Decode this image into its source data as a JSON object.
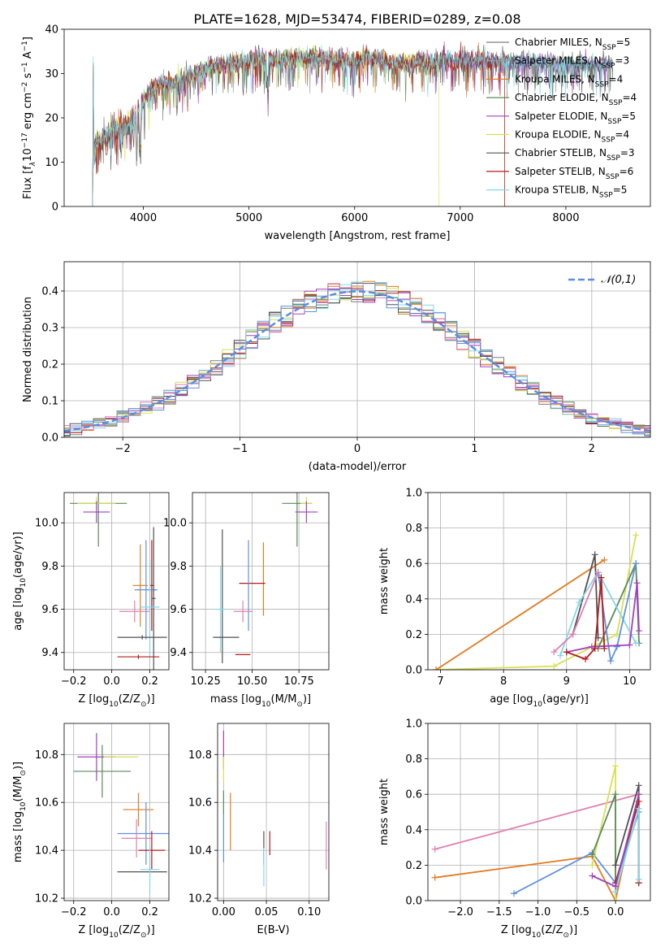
{
  "title": "PLATE=1628, MJD=53474, FIBERID=0289, z=0.08",
  "colors": {
    "Chabrier MILES": "#7f7f7f",
    "Salpeter MILES": "#9fa0a0",
    "Kroupa MILES": "#e07b20",
    "Chabrier ELODIE": "#5a8a5a",
    "Salpeter ELODIE": "#a040c0",
    "Kroupa ELODIE": "#d8e050",
    "Chabrier STELIB": "#505050",
    "Salpeter STELIB": "#b01c1c",
    "Kroupa STELIB": "#80d8e8",
    "pink": "#e080b0",
    "blue": "#6090e0",
    "gauss": "#5b8ee0"
  },
  "chart_data": [
    {
      "type": "line",
      "xlabel": "wavelength [Angstrom, rest frame]",
      "ylabel": "Flux [f$_\\lambda$10$^{-17}$ erg cm$^{-2}$ s$^{-1}$ A$^{-1}$]",
      "ylabel_main": "Flux [f",
      "ylabel_lambda": "λ",
      "ylabel_mid": "10",
      "ylabel_exp": "−17",
      "ylabel_rest": " erg cm",
      "ylabel_cm_exp": "−2",
      "ylabel_s": " s",
      "ylabel_s_exp": "−1",
      "ylabel_A": " A",
      "ylabel_A_exp": "−1",
      "ylabel_end": "]",
      "xlim": [
        3250,
        8800
      ],
      "ylim": [
        0,
        40
      ],
      "xticks": [
        4000,
        5000,
        6000,
        7000,
        8000
      ],
      "yticks": [
        0,
        10,
        20,
        30,
        40
      ],
      "legend": [
        {
          "label": "Chabrier MILES, N",
          "sub": "SSP",
          "tail": "=5",
          "key": "Chabrier MILES"
        },
        {
          "label": "Salpeter MILES, N",
          "sub": "SSP",
          "tail": "=3",
          "key": "Salpeter MILES"
        },
        {
          "label": "Kroupa MILES, N",
          "sub": "SSP",
          "tail": "=4",
          "key": "Kroupa MILES"
        },
        {
          "label": "Chabrier ELODIE, N",
          "sub": "SSP",
          "tail": "=4",
          "key": "Chabrier ELODIE"
        },
        {
          "label": "Salpeter ELODIE, N",
          "sub": "SSP",
          "tail": "=5",
          "key": "Salpeter ELODIE"
        },
        {
          "label": "Kroupa ELODIE, N",
          "sub": "SSP",
          "tail": "=4",
          "key": "Kroupa ELODIE"
        },
        {
          "label": "Chabrier STELIB, N",
          "sub": "SSP",
          "tail": "=3",
          "key": "Chabrier STELIB"
        },
        {
          "label": "Salpeter STELIB, N",
          "sub": "SSP",
          "tail": "=6",
          "key": "Salpeter STELIB"
        },
        {
          "label": "Kroupa STELIB, N",
          "sub": "SSP",
          "tail": "=5",
          "key": "Kroupa STELIB"
        }
      ],
      "legend_position": "right",
      "continuum": [
        [
          3530,
          13
        ],
        [
          3600,
          15
        ],
        [
          3700,
          17
        ],
        [
          3800,
          17.5
        ],
        [
          3900,
          19
        ],
        [
          4000,
          24
        ],
        [
          4100,
          27
        ],
        [
          4200,
          28
        ],
        [
          4300,
          27.5
        ],
        [
          4400,
          29
        ],
        [
          4500,
          30
        ],
        [
          4600,
          31
        ],
        [
          4700,
          32
        ],
        [
          4800,
          32.5
        ],
        [
          4900,
          32.5
        ],
        [
          5000,
          33
        ],
        [
          5100,
          33.5
        ],
        [
          5200,
          33
        ],
        [
          5300,
          33
        ],
        [
          5400,
          33.5
        ],
        [
          5500,
          33.5
        ],
        [
          5600,
          33.5
        ],
        [
          5700,
          33.5
        ],
        [
          5800,
          33
        ],
        [
          5900,
          33
        ],
        [
          6000,
          33
        ],
        [
          6100,
          33.5
        ],
        [
          6200,
          33.5
        ],
        [
          6300,
          32.5
        ],
        [
          6400,
          32.5
        ],
        [
          6500,
          32
        ],
        [
          6600,
          33
        ],
        [
          6700,
          32
        ],
        [
          6800,
          33
        ],
        [
          6900,
          33
        ],
        [
          7000,
          33
        ],
        [
          7200,
          33
        ],
        [
          7400,
          32.5
        ],
        [
          7600,
          32.5
        ],
        [
          7800,
          32.5
        ],
        [
          8000,
          32
        ],
        [
          8200,
          32
        ],
        [
          8450,
          32
        ]
      ]
    },
    {
      "type": "histogram",
      "xlabel": "(data-model)/error",
      "ylabel": "Normed distribution",
      "xlim": [
        -2.5,
        2.5
      ],
      "ylim": [
        0,
        0.48
      ],
      "xticks": [
        -2,
        -1,
        0,
        1,
        2
      ],
      "yticks": [
        0.0,
        0.1,
        0.2,
        0.3,
        0.4
      ],
      "legend": "𝒩(0,1)",
      "legend_position": "top-right",
      "bin_width": 0.1,
      "series_keys": [
        "Chabrier MILES",
        "Kroupa MILES",
        "Chabrier ELODIE",
        "Salpeter ELODIE",
        "Kroupa ELODIE",
        "Chabrier STELIB",
        "Salpeter STELIB",
        "Kroupa STELIB",
        "pink",
        "blue"
      ]
    },
    {
      "type": "scatter",
      "xlabel": "Z [log",
      "xlabel_sub": "10",
      "xlabel_tail": "(Z/Z",
      "xlabel_sun": "⊙",
      "xlabel_end": ")]",
      "ylabel": "age  [log",
      "ylabel_sub": "10",
      "ylabel_tail": "(age/yr)]",
      "xlim": [
        -0.25,
        0.3
      ],
      "ylim": [
        9.32,
        10.14
      ],
      "xticks": [
        -0.2,
        0.0,
        0.2
      ],
      "yticks": [
        9.4,
        9.6,
        9.8,
        10.0
      ],
      "points": [
        {
          "key": "Chabrier ELODIE",
          "x": -0.07,
          "y": 10.09,
          "xerr": 0.15,
          "yerr": 0.2
        },
        {
          "key": "Kroupa ELODIE",
          "x": -0.08,
          "y": 10.09,
          "xerr": 0.1,
          "yerr": 0.03
        },
        {
          "key": "Salpeter ELODIE",
          "x": -0.08,
          "y": 10.05,
          "xerr": 0.07,
          "yerr": 0.05
        },
        {
          "key": "Kroupa MILES",
          "x": 0.15,
          "y": 9.71,
          "xerr": 0.04,
          "yerr": 0.19
        },
        {
          "key": "Salpeter STELIB",
          "x": 0.21,
          "y": 9.71,
          "xerr": 0.01,
          "yerr": 0.21
        },
        {
          "key": "blue",
          "x": 0.18,
          "y": 9.69,
          "xerr": 0.06,
          "yerr": 0.23
        },
        {
          "key": "Chabrier STELIB",
          "x": 0.22,
          "y": 9.65,
          "xerr": 0.01,
          "yerr": 0.33
        },
        {
          "key": "pink",
          "x": 0.12,
          "y": 9.59,
          "xerr": 0.08,
          "yerr": 0.05
        },
        {
          "key": "Kroupa STELIB",
          "x": 0.2,
          "y": 9.61,
          "xerr": 0.05,
          "yerr": 0.22
        },
        {
          "key": "Chabrier STELIB",
          "x": 0.16,
          "y": 9.47,
          "xerr": 0.13,
          "yerr": 0.01
        },
        {
          "key": "Salpeter STELIB",
          "x": 0.14,
          "y": 9.38,
          "xerr": 0.11,
          "yerr": 0.01
        }
      ]
    },
    {
      "type": "scatter",
      "xlabel": "mass [log",
      "xlabel_sub": "10",
      "xlabel_tail": "(M/M",
      "xlabel_sun": "⊙",
      "xlabel_end": ")]",
      "xlim": [
        10.18,
        10.91
      ],
      "ylim": [
        9.32,
        10.14
      ],
      "xticks": [
        10.25,
        10.5,
        10.75
      ],
      "yticks": [
        9.4,
        9.6,
        9.8,
        10.0
      ],
      "points": [
        {
          "key": "Chabrier ELODIE",
          "x": 10.74,
          "y": 10.09,
          "xerr": 0.08,
          "yerr": 0.2
        },
        {
          "key": "Kroupa ELODIE",
          "x": 10.79,
          "y": 10.09,
          "xerr": 0.03,
          "yerr": 0.03
        },
        {
          "key": "Salpeter ELODIE",
          "x": 10.79,
          "y": 10.05,
          "xerr": 0.06,
          "yerr": 0.05
        },
        {
          "key": "Chabrier STELIB",
          "x": 10.34,
          "y": 9.66,
          "xerr": 0.0,
          "yerr": 0.31
        },
        {
          "key": "Kroupa MILES",
          "x": 10.56,
          "y": 9.74,
          "xerr": 0.0,
          "yerr": 0.17
        },
        {
          "key": "Salpeter STELIB",
          "x": 10.5,
          "y": 9.72,
          "xerr": 0.07,
          "yerr": 0.0
        },
        {
          "key": "blue",
          "x": 10.48,
          "y": 9.71,
          "xerr": 0.0,
          "yerr": 0.21
        },
        {
          "key": "pink",
          "x": 10.45,
          "y": 9.59,
          "xerr": 0.05,
          "yerr": 0.05
        },
        {
          "key": "Kroupa STELIB",
          "x": 10.33,
          "y": 9.6,
          "xerr": 0.03,
          "yerr": 0.2
        },
        {
          "key": "Chabrier STELIB",
          "x": 10.36,
          "y": 9.47,
          "xerr": 0.07,
          "yerr": 0.0
        },
        {
          "key": "Salpeter STELIB",
          "x": 10.45,
          "y": 9.39,
          "xerr": 0.04,
          "yerr": 0.0
        }
      ]
    },
    {
      "type": "line",
      "xlabel": "age  [log",
      "xlabel_sub": "10",
      "xlabel_tail": "(age/yr)]",
      "ylabel": "mass weight",
      "xlim": [
        6.8,
        10.33
      ],
      "ylim": [
        0,
        1
      ],
      "xticks": [
        7,
        8,
        9,
        10
      ],
      "yticks": [
        0.0,
        0.2,
        0.4,
        0.6,
        0.8,
        1.0
      ],
      "series": [
        {
          "key": "Kroupa ELODIE",
          "x": [
            6.93,
            8.8,
            9.8,
            10.1
          ],
          "y": [
            0.0,
            0.02,
            0.2,
            0.76
          ]
        },
        {
          "key": "Kroupa MILES",
          "x": [
            6.93,
            9.6
          ],
          "y": [
            0.0,
            0.62
          ]
        },
        {
          "key": "Chabrier STELIB",
          "x": [
            9.1,
            9.45,
            9.5
          ],
          "y": [
            0.2,
            0.65,
            0.18
          ]
        },
        {
          "key": "Chabrier ELODIE",
          "x": [
            9.5,
            10.1,
            10.15
          ],
          "y": [
            0.12,
            0.6,
            0.15
          ]
        },
        {
          "key": "Kroupa STELIB",
          "x": [
            8.9,
            9.2,
            9.5,
            10.1
          ],
          "y": [
            0.08,
            0.38,
            0.55,
            0.15
          ]
        },
        {
          "key": "blue",
          "x": [
            9.5,
            9.7,
            9.8,
            10.1
          ],
          "y": [
            0.55,
            0.05,
            0.13,
            0.6
          ]
        },
        {
          "key": "Salpeter ELODIE",
          "x": [
            9.0,
            9.4,
            10.0,
            10.12,
            10.15
          ],
          "y": [
            0.1,
            0.13,
            0.14,
            0.49,
            0.22
          ]
        },
        {
          "key": "Salpeter STELIB",
          "x": [
            9.0,
            9.3,
            9.45,
            9.55,
            9.6
          ],
          "y": [
            0.1,
            0.06,
            0.12,
            0.52,
            0.12
          ]
        },
        {
          "key": "pink",
          "x": [
            8.8,
            9.1,
            9.5
          ],
          "y": [
            0.1,
            0.2,
            0.55
          ]
        }
      ]
    },
    {
      "type": "scatter",
      "xlabel": "Z [log",
      "xlabel_sub": "10",
      "xlabel_tail": "(Z/Z",
      "xlabel_sun": "⊙",
      "xlabel_end": ")]",
      "ylabel": "mass [log",
      "ylabel_sub": "10",
      "ylabel_tail": "(M/M",
      "ylabel_sun": "⊙",
      "ylabel_end": ")]",
      "xlim": [
        -0.25,
        0.3
      ],
      "ylim": [
        10.19,
        10.93
      ],
      "xticks": [
        -0.2,
        0.0,
        0.2
      ],
      "yticks": [
        10.2,
        10.4,
        10.6,
        10.8
      ],
      "points": [
        {
          "key": "Salpeter ELODIE",
          "x": -0.08,
          "y": 10.79,
          "xerr": 0.1,
          "yerr": 0.1
        },
        {
          "key": "Kroupa ELODIE",
          "x": 0.05,
          "y": 10.79,
          "xerr": 0.09,
          "yerr": 0.0
        },
        {
          "key": "Chabrier ELODIE",
          "x": -0.05,
          "y": 10.73,
          "xerr": 0.15,
          "yerr": 0.11
        },
        {
          "key": "Kroupa MILES",
          "x": 0.14,
          "y": 10.57,
          "xerr": 0.08,
          "yerr": 0.07
        },
        {
          "key": "blue",
          "x": 0.18,
          "y": 10.47,
          "xerr": 0.15,
          "yerr": 0.13
        },
        {
          "key": "pink",
          "x": 0.13,
          "y": 10.45,
          "xerr": 0.08,
          "yerr": 0.08
        },
        {
          "key": "Salpeter STELIB",
          "x": 0.21,
          "y": 10.4,
          "xerr": 0.07,
          "yerr": 0.08
        },
        {
          "key": "Chabrier STELIB",
          "x": 0.16,
          "y": 10.31,
          "xerr": 0.13,
          "yerr": 0.0
        },
        {
          "key": "Kroupa STELIB",
          "x": 0.2,
          "y": 10.32,
          "xerr": 0.05,
          "yerr": 0.1
        }
      ]
    },
    {
      "type": "scatter",
      "xlabel": "E(B-V)",
      "xlim": [
        -0.007,
        0.123
      ],
      "ylim": [
        10.19,
        10.93
      ],
      "xticks": [
        0.0,
        0.05,
        0.1
      ],
      "yticks": [
        10.2,
        10.4,
        10.6,
        10.8
      ],
      "points": [
        {
          "key": "Salpeter ELODIE",
          "x": 0.0,
          "y": 10.82,
          "yerr": 0.08
        },
        {
          "key": "Kroupa ELODIE",
          "x": 0.0,
          "y": 10.74,
          "yerr": 0.05
        },
        {
          "key": "Chabrier ELODIE",
          "x": 0.0,
          "y": 10.6,
          "yerr": 0.05
        },
        {
          "key": "blue",
          "x": 0.0,
          "y": 10.45,
          "yerr": 0.1
        },
        {
          "key": "Kroupa MILES",
          "x": 0.008,
          "y": 10.52,
          "yerr": 0.12
        },
        {
          "key": "Chabrier STELIB",
          "x": 0.047,
          "y": 10.41,
          "yerr": 0.07
        },
        {
          "key": "Kroupa STELIB",
          "x": 0.047,
          "y": 10.33,
          "yerr": 0.08
        },
        {
          "key": "Salpeter STELIB",
          "x": 0.054,
          "y": 10.43,
          "yerr": 0.05
        },
        {
          "key": "pink",
          "x": 0.12,
          "y": 10.42,
          "yerr": 0.1
        }
      ]
    },
    {
      "type": "line",
      "xlabel": "Z [log",
      "xlabel_sub": "10",
      "xlabel_tail": "(Z/Z",
      "xlabel_sun": "⊙",
      "xlabel_end": ")]",
      "ylabel": "mass weight",
      "xlim": [
        -2.42,
        0.45
      ],
      "ylim": [
        0,
        1
      ],
      "xticks": [
        -2.0,
        -1.5,
        -1.0,
        -0.5,
        0.0
      ],
      "yticks": [
        0.0,
        0.2,
        0.4,
        0.6,
        0.8,
        1.0
      ],
      "series": [
        {
          "key": "pink",
          "x": [
            -2.33,
            0.3
          ],
          "y": [
            0.29,
            0.6
          ]
        },
        {
          "key": "Kroupa MILES",
          "x": [
            -2.33,
            -0.3,
            0.0,
            0.3
          ],
          "y": [
            0.13,
            0.25,
            0.0,
            0.6
          ]
        },
        {
          "key": "blue",
          "x": [
            -1.31,
            -0.3,
            0.0,
            0.3
          ],
          "y": [
            0.04,
            0.27,
            0.1,
            0.5
          ]
        },
        {
          "key": "Kroupa ELODIE",
          "x": [
            -0.3,
            0.0,
            0.0
          ],
          "y": [
            0.2,
            0.76,
            0.0
          ]
        },
        {
          "key": "Chabrier ELODIE",
          "x": [
            -0.3,
            0.0,
            0.0
          ],
          "y": [
            0.26,
            0.6,
            0.1
          ]
        },
        {
          "key": "Chabrier STELIB",
          "x": [
            0.0,
            0.3,
            0.3
          ],
          "y": [
            0.2,
            0.65,
            0.1
          ]
        },
        {
          "key": "Salpeter STELIB",
          "x": [
            0.0,
            0.3,
            0.3
          ],
          "y": [
            0.1,
            0.56,
            0.1
          ]
        },
        {
          "key": "Kroupa STELIB",
          "x": [
            0.0,
            0.3,
            0.3
          ],
          "y": [
            0.05,
            0.52,
            0.12
          ]
        },
        {
          "key": "Salpeter ELODIE",
          "x": [
            -0.3,
            0.0,
            0.3
          ],
          "y": [
            0.14,
            0.08,
            0.6
          ]
        }
      ]
    }
  ]
}
